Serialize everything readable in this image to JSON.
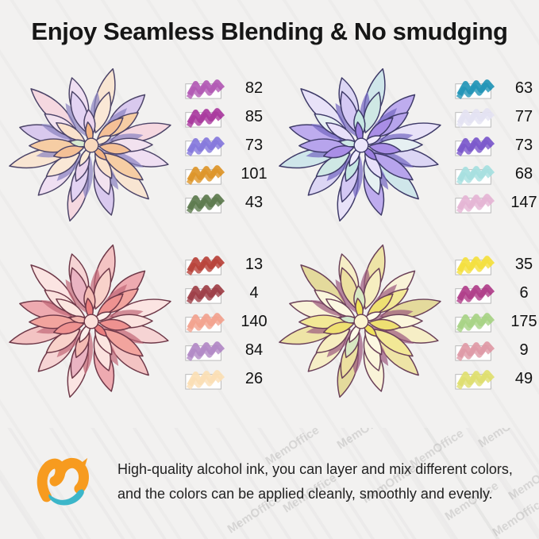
{
  "title": "Enjoy Seamless Blending & No smudging",
  "panels": [
    {
      "id": "peach",
      "swatches": [
        {
          "code": "82",
          "color": "#b25ab4"
        },
        {
          "code": "85",
          "color": "#a93a9e"
        },
        {
          "code": "73",
          "color": "#8578dc"
        },
        {
          "code": "101",
          "color": "#dd9528"
        },
        {
          "code": "43",
          "color": "#5c7a4d"
        }
      ]
    },
    {
      "id": "purple",
      "swatches": [
        {
          "code": "63",
          "color": "#2295b6"
        },
        {
          "code": "77",
          "color": "#e4e2f2"
        },
        {
          "code": "73",
          "color": "#7a57cb"
        },
        {
          "code": "68",
          "color": "#a6e0e0"
        },
        {
          "code": "147",
          "color": "#e5b5d5"
        }
      ]
    },
    {
      "id": "pink",
      "swatches": [
        {
          "code": "13",
          "color": "#b8423a"
        },
        {
          "code": "4",
          "color": "#9e3f47"
        },
        {
          "code": "140",
          "color": "#f2a28e"
        },
        {
          "code": "84",
          "color": "#b289c6"
        },
        {
          "code": "26",
          "color": "#fbdfb5"
        }
      ]
    },
    {
      "id": "yellow",
      "swatches": [
        {
          "code": "35",
          "color": "#f4e03e"
        },
        {
          "code": "6",
          "color": "#b03e8a"
        },
        {
          "code": "175",
          "color": "#a8d385"
        },
        {
          "code": "9",
          "color": "#df9aa6"
        },
        {
          "code": "49",
          "color": "#dfdf70"
        }
      ]
    }
  ],
  "flower_palettes": {
    "peach": {
      "outline": "#4c4468",
      "shadow": "#8a84c0",
      "center": "#f7d9bd",
      "rings": [
        [
          "#efdff2",
          "#f8e5d2",
          "#d9c9ee",
          "#f5d8e0"
        ],
        [
          "#f6cda4",
          "#f2e2ef",
          "#e3d3f3",
          "#fae8d6"
        ],
        [
          "#f4c096",
          "#fae2cc",
          "#ead4ee"
        ],
        [
          "#f2b586",
          "#fbead6",
          "#d8ecd0"
        ]
      ]
    },
    "purple": {
      "outline": "#3e3a68",
      "shadow": "#7468c2",
      "center": "#eae5fa",
      "rings": [
        [
          "#dcd6f4",
          "#cfe6ea",
          "#beacee",
          "#e8e2f8"
        ],
        [
          "#b7a4ec",
          "#e6f0f2",
          "#d4c8f4",
          "#cfe8e4"
        ],
        [
          "#a98ee6",
          "#e8e0fa",
          "#c6e6e2"
        ],
        [
          "#9c80e0",
          "#efeafc",
          "#cfeae6"
        ]
      ]
    },
    "pink": {
      "outline": "#6e3848",
      "shadow": "#c26a78",
      "center": "#fbe0da",
      "rings": [
        [
          "#f6d4d4",
          "#f3c3c3",
          "#eeaab0",
          "#fbe4e2"
        ],
        [
          "#f2a49e",
          "#fbe2de",
          "#eab4c2",
          "#f8d2ca"
        ],
        [
          "#ee9290",
          "#fbe6e0",
          "#f4bcb4"
        ],
        [
          "#ea7e7e",
          "#fceeea",
          "#f2b4ac"
        ]
      ]
    },
    "yellow": {
      "outline": "#6a4058",
      "shadow": "#9c5c80",
      "center": "#fbf4d0",
      "rings": [
        [
          "#f6eec6",
          "#eee4a6",
          "#f9f3d8",
          "#e4da9c"
        ],
        [
          "#f2e896",
          "#fbf6dc",
          "#ece0a0",
          "#f6eec0"
        ],
        [
          "#eee072",
          "#fcf8e2",
          "#d8e8c2"
        ],
        [
          "#f0e25c",
          "#fdfae8",
          "#d0e8cc"
        ]
      ]
    }
  },
  "footer": {
    "line1": "High-quality alcohol ink, you can layer and mix different colors,",
    "line2": "and the colors can be applied cleanly, smoothly and evenly."
  },
  "watermark": "MemOffice",
  "logo_colors": {
    "orange": "#f79b1f",
    "teal": "#3cb6c9"
  }
}
